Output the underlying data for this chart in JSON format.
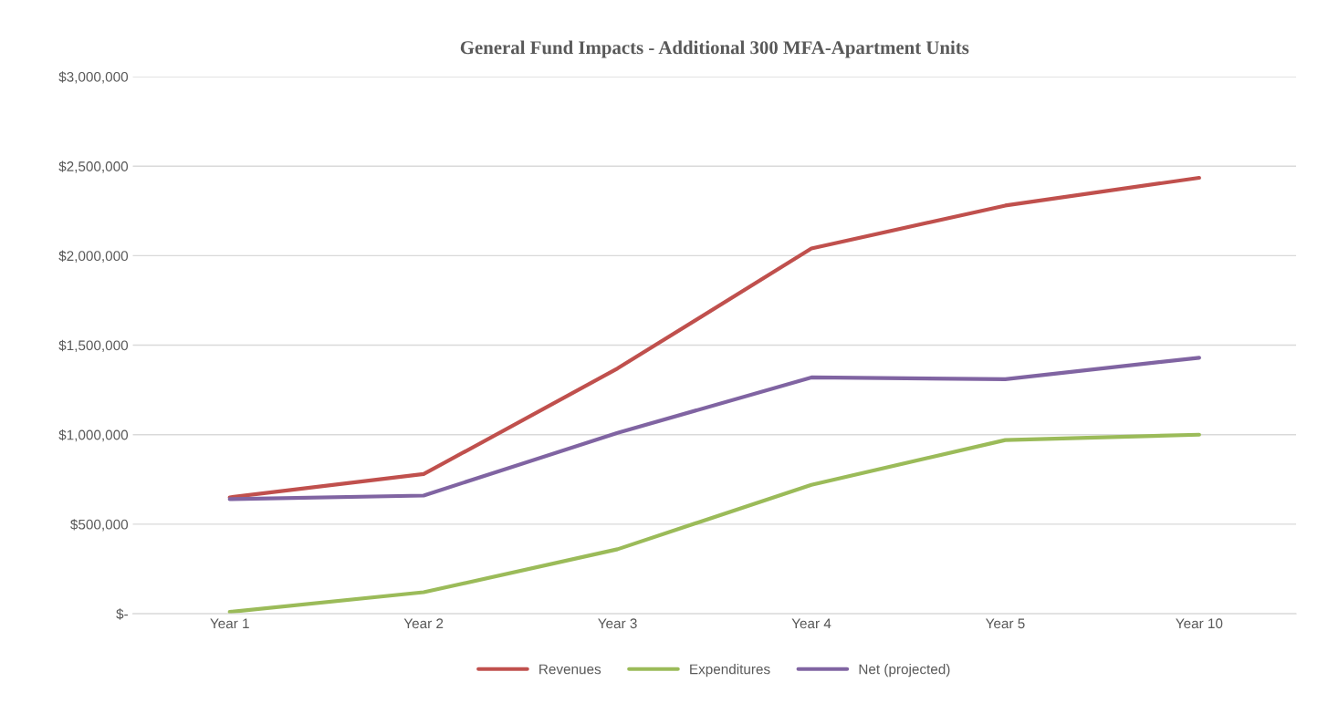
{
  "chart_data": {
    "type": "line",
    "title": "General Fund Impacts - Additional 300 MFA-Apartment Units",
    "categories": [
      "Year 1",
      "Year 2",
      "Year 3",
      "Year 4",
      "Year 5",
      "Year 10"
    ],
    "series": [
      {
        "name": "Revenues",
        "color": "#c0504d",
        "values": [
          650000,
          780000,
          1370000,
          2040000,
          2280000,
          2435000
        ]
      },
      {
        "name": "Expenditures",
        "color": "#9bbb59",
        "values": [
          10000,
          120000,
          360000,
          720000,
          970000,
          1000000
        ]
      },
      {
        "name": "Net (projected)",
        "color": "#8064a2",
        "values": [
          640000,
          660000,
          1010000,
          1320000,
          1310000,
          1430000
        ]
      }
    ],
    "ylim": [
      0,
      3000000
    ],
    "yticks": [
      {
        "value": 0,
        "label": "$-"
      },
      {
        "value": 500000,
        "label": "$500,000"
      },
      {
        "value": 1000000,
        "label": "$1,000,000"
      },
      {
        "value": 1500000,
        "label": "$1,500,000"
      },
      {
        "value": 2000000,
        "label": "$2,000,000"
      },
      {
        "value": 2500000,
        "label": "$2,500,000"
      },
      {
        "value": 3000000,
        "label": "$3,000,000"
      }
    ],
    "grid": "y",
    "legend": "bottom",
    "marker": "none",
    "line_style": "solid"
  }
}
